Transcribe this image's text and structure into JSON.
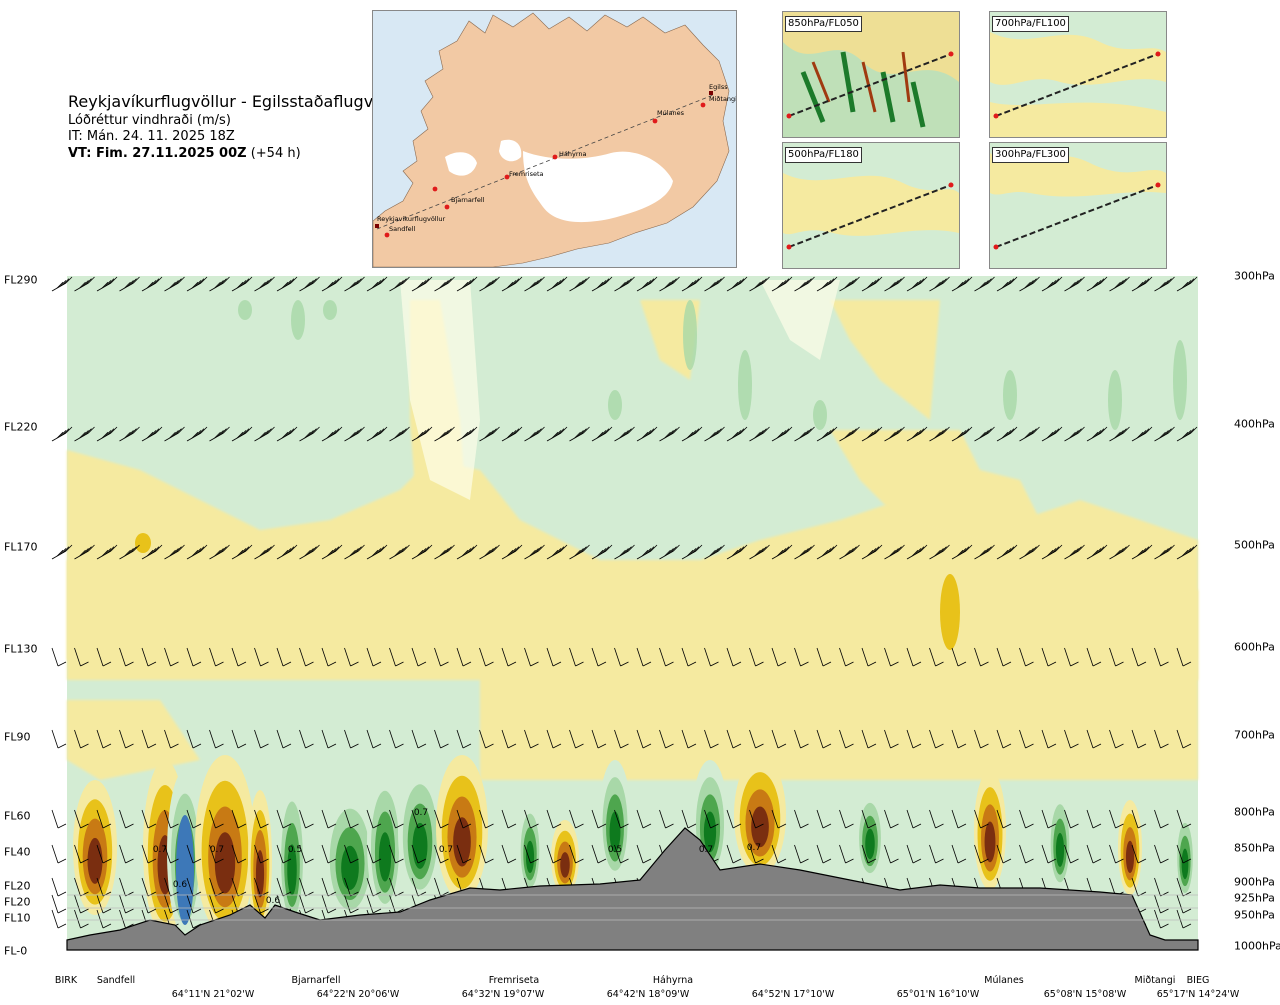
{
  "header": {
    "title": "Reykjavíkurflugvöllur - Egilsstaðaflugvöllur",
    "variable": "Lóðréttur vindhraði (m/s)",
    "it_line": "IT: Mán. 24. 11. 2025 18Z",
    "vt_prefix": "VT: Fim. 27.11.2025 00Z",
    "vt_suffix": " (+54 h)"
  },
  "map": {
    "stations": [
      "Reykjavíkurflugvöllur",
      "Sandfell",
      "Bjarnarfell",
      "Fremriseta",
      "Háhyrna",
      "Múlanes",
      "Miðtangi",
      "Egilss"
    ]
  },
  "panels": [
    {
      "label": "850hPa/FL050"
    },
    {
      "label": "700hPa/FL100"
    },
    {
      "label": "500hPa/FL180"
    },
    {
      "label": "300hPa/FL300"
    }
  ],
  "chart_data": {
    "type": "heatmap",
    "title": "Reykjavíkurflugvöllur - Egilsstaðaflugvöllur",
    "variable": "Lóðréttur vindhraði (m/s)",
    "flight_levels": [
      "FL290",
      "FL220",
      "FL170",
      "FL130",
      "FL90",
      "FL60",
      "FL40",
      "FL20",
      "FL20",
      "FL10",
      "FL-0"
    ],
    "pressure_levels": [
      "300hPa",
      "400hPa",
      "500hPa",
      "600hPa",
      "700hPa",
      "800hPa",
      "850hPa",
      "900hPa",
      "925hPa",
      "950hPa",
      "1000hPa"
    ],
    "station_labels": [
      "BIRK",
      "Sandfell",
      "Bjarnarfell",
      "Fremriseta",
      "Háhyrna",
      "Múlanes",
      "Miðtangi",
      "BIEG"
    ],
    "coord_labels": [
      "64°11'N 21°02'W",
      "64°22'N 20°06'W",
      "64°32'N 19°07'W",
      "64°42'N 18°09'W",
      "64°52'N 17°10'W",
      "65°01'N 16°10'W",
      "65°08'N 15°08'W",
      "65°17'N 14°24'W"
    ],
    "annotations": [
      "0.7",
      "0.7",
      "0.5",
      "0.7",
      "0.7",
      "0.5",
      "0.7",
      "0.7",
      "0.6",
      "0.6"
    ],
    "colors": {
      "downdraft_strong": "#7a2e10",
      "downdraft_mid": "#c87a14",
      "downdraft_weak": "#e8c21a",
      "downdraft_faint": "#f5eaa0",
      "neutral": "#fdfde8",
      "updraft_faint": "#d3ecd3",
      "updraft_weak": "#a8d8a8",
      "updraft_mid": "#4ea64e",
      "updraft_strong": "#0e7a1e",
      "updraft_max": "#3d78b8",
      "terrain": "#808080"
    }
  }
}
